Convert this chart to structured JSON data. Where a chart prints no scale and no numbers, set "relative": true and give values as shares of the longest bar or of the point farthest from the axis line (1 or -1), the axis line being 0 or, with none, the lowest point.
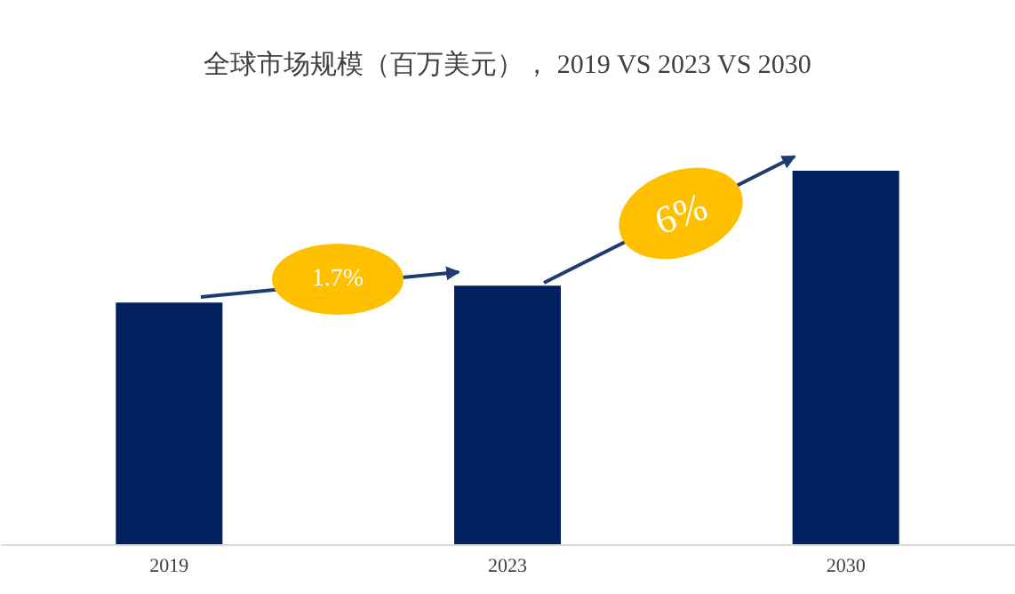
{
  "chart_data": {
    "type": "bar",
    "title": "全球市场规模（百万美元），  2019 VS 2023 VS 2030",
    "categories": [
      "2019",
      "2023",
      "2030"
    ],
    "values": [
      0.647,
      0.692,
      1
    ],
    "color": "#03215f",
    "relative": true,
    "annotations": [
      "1.7%",
      "6%"
    ]
  }
}
